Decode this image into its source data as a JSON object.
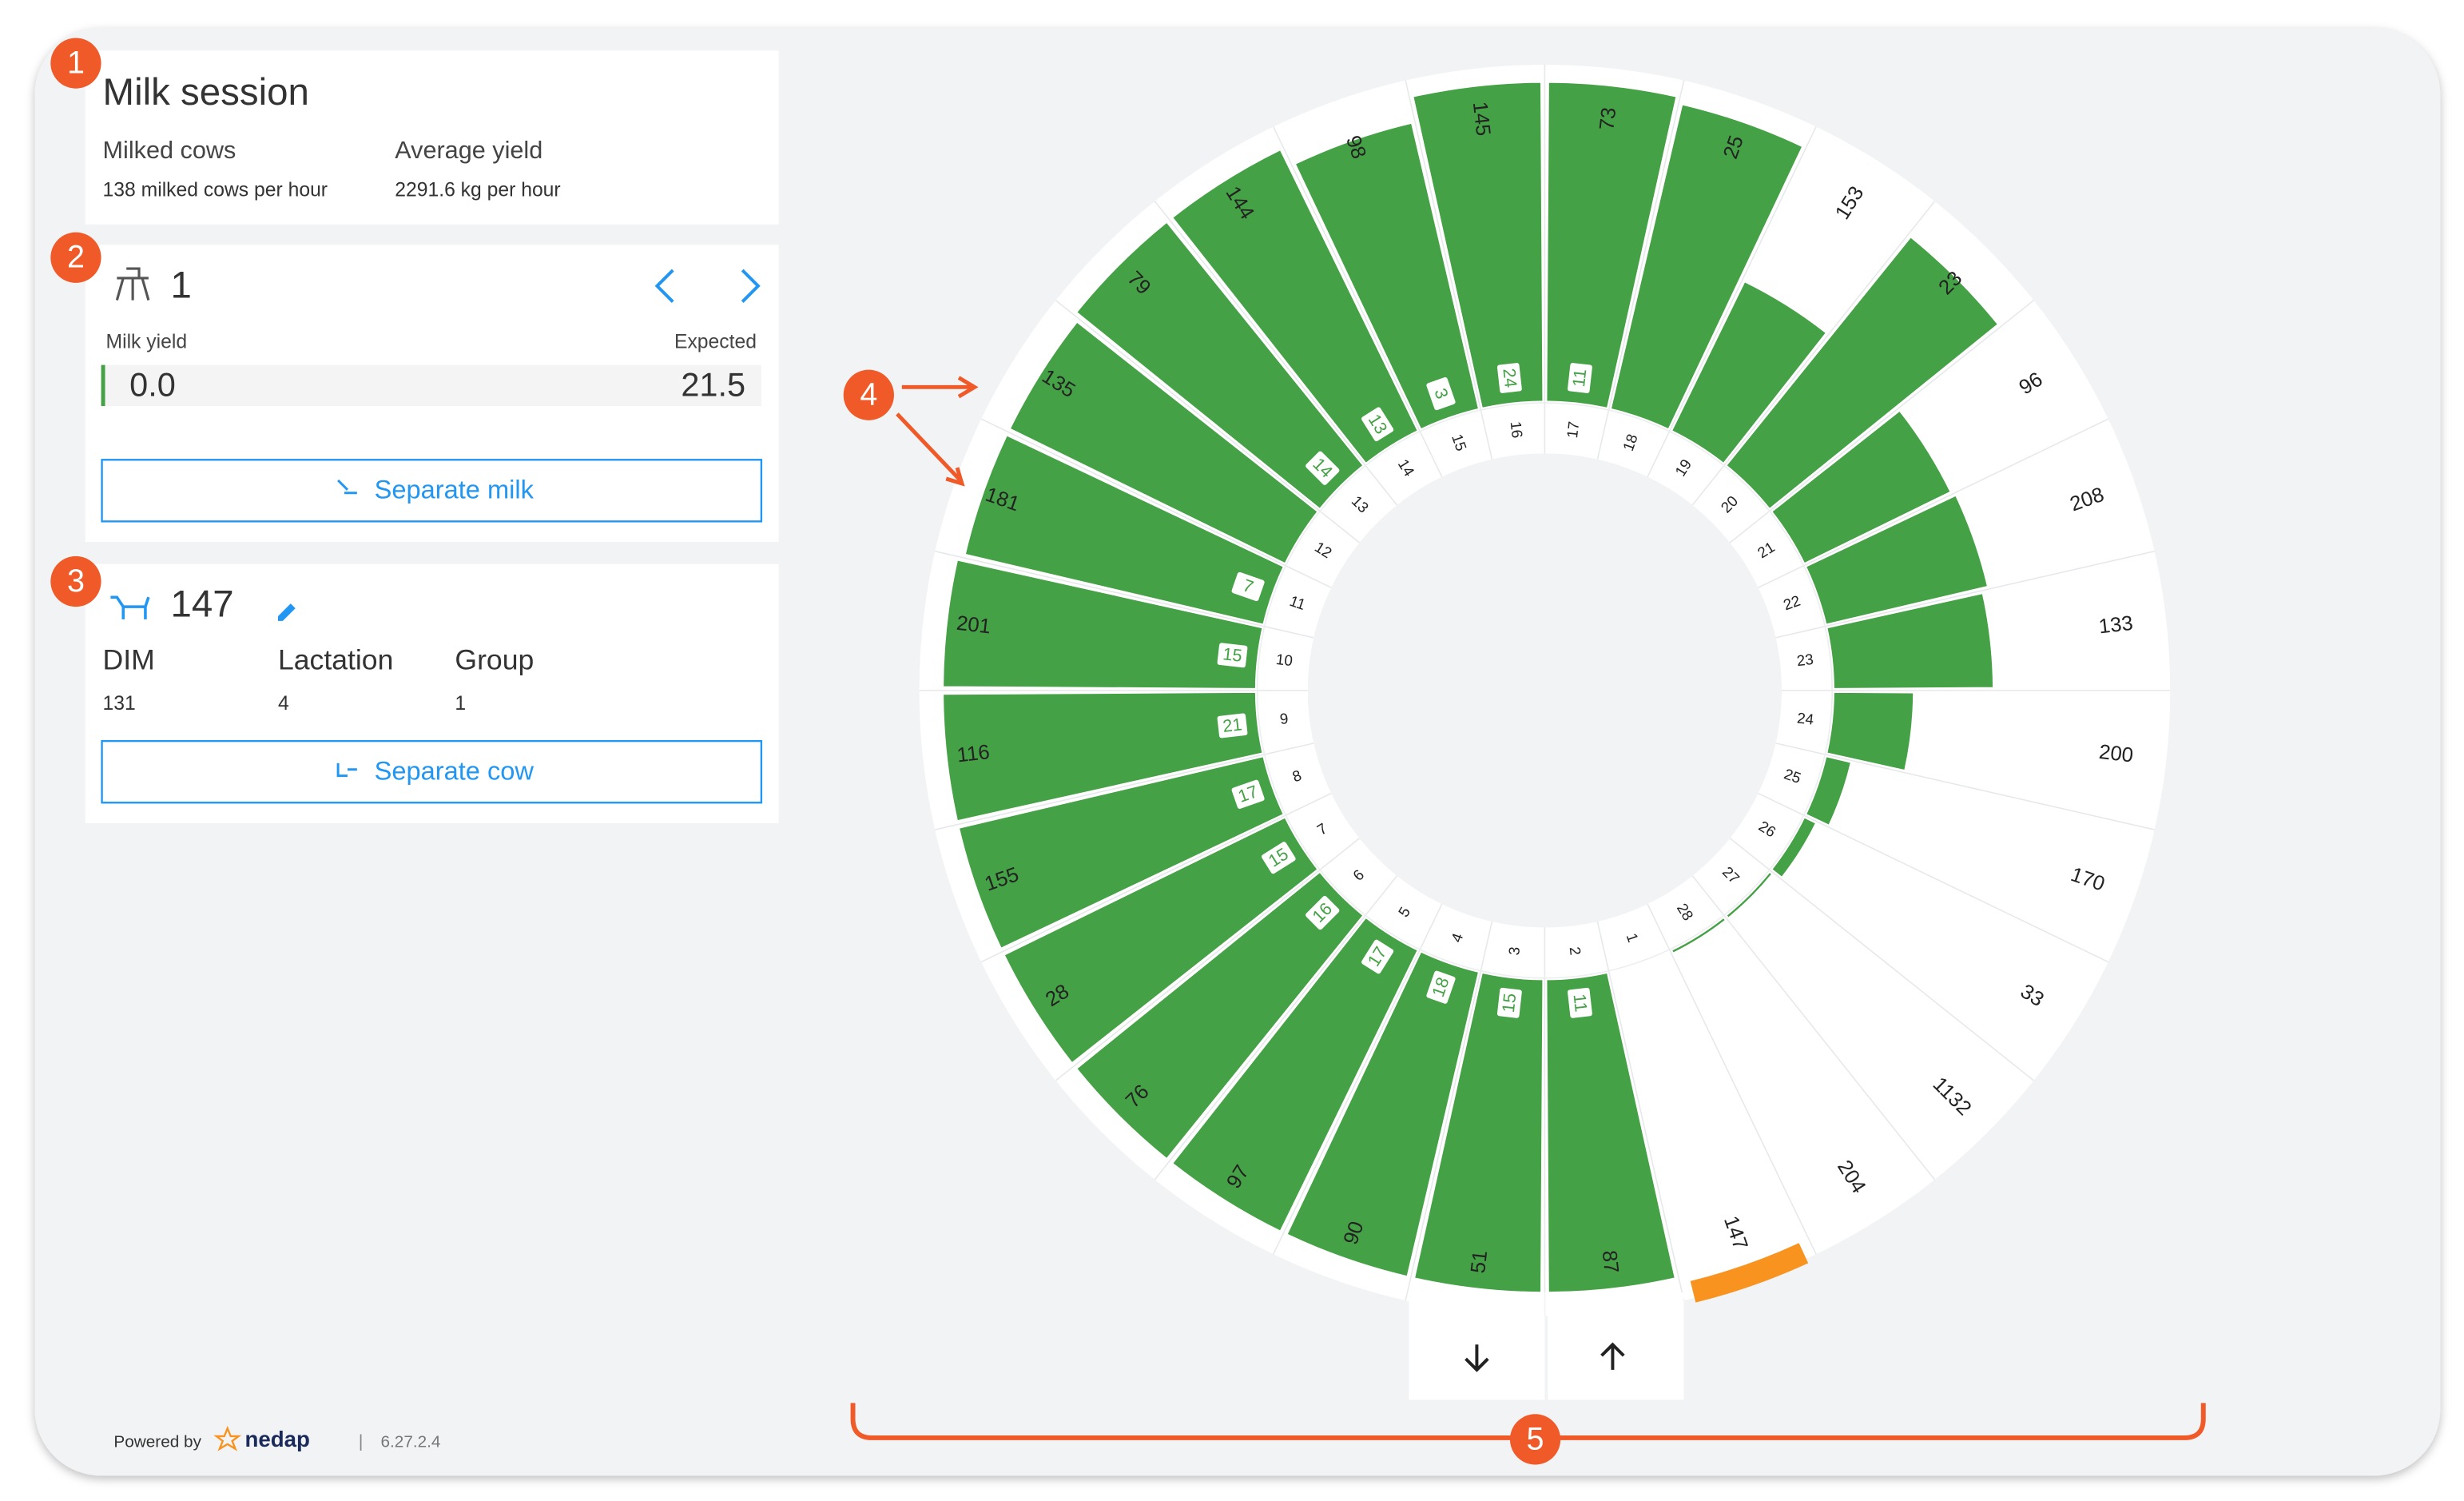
{
  "session": {
    "title": "Milk session",
    "milked_label": "Milked cows",
    "milked_value": "138 milked cows per hour",
    "yield_label": "Average yield",
    "yield_value": "2291.6 kg per hour"
  },
  "stall_panel": {
    "stall": "1",
    "milk_yield_label": "Milk yield",
    "expected_label": "Expected",
    "milk_yield": "0.0",
    "expected": "21.5",
    "button": "Separate milk"
  },
  "cow_panel": {
    "cow": "147",
    "fields": [
      {
        "label": "DIM",
        "value": "131"
      },
      {
        "label": "Lactation",
        "value": "4"
      },
      {
        "label": "Group",
        "value": "1"
      }
    ],
    "button": "Separate cow"
  },
  "footer": {
    "powered_by": "Powered by",
    "brand": "nedap",
    "separator": "|",
    "version": "6.27.2.4"
  },
  "callouts": [
    "1",
    "2",
    "3",
    "4",
    "5"
  ],
  "rotary": {
    "bar_color": "#45a145",
    "current_color": "#f7931e",
    "stalls": [
      {
        "number": 1,
        "cow": "147",
        "progress": 0,
        "current": true
      },
      {
        "number": 2,
        "cow": "87",
        "tag": "11",
        "progress": 98
      },
      {
        "number": 3,
        "cow": "51",
        "tag": "15",
        "progress": 98
      },
      {
        "number": 4,
        "cow": "90",
        "tag": "18",
        "progress": 98
      },
      {
        "number": 5,
        "cow": "97",
        "tag": "17",
        "progress": 98
      },
      {
        "number": 6,
        "cow": "76",
        "tag": "16",
        "progress": 98
      },
      {
        "number": 7,
        "cow": "28",
        "tag": "15",
        "progress": 98
      },
      {
        "number": 8,
        "cow": "155",
        "tag": "17",
        "progress": 98
      },
      {
        "number": 9,
        "cow": "116",
        "tag": "21",
        "progress": 98
      },
      {
        "number": 10,
        "cow": "201",
        "tag": "15",
        "progress": 98
      },
      {
        "number": 11,
        "cow": "181",
        "tag": "7",
        "progress": 96
      },
      {
        "number": 12,
        "cow": "135",
        "progress": 96
      },
      {
        "number": 13,
        "cow": "79",
        "tag": "14",
        "progress": 98
      },
      {
        "number": 14,
        "cow": "144",
        "tag": "13",
        "progress": 98
      },
      {
        "number": 15,
        "cow": "98",
        "tag": "3",
        "progress": 92
      },
      {
        "number": 16,
        "cow": "145",
        "tag": "24",
        "progress": 100
      },
      {
        "number": 17,
        "cow": "73",
        "tag": "11",
        "progress": 100
      },
      {
        "number": 18,
        "cow": "25",
        "progress": 98
      },
      {
        "number": 19,
        "cow": "153",
        "progress": 52
      },
      {
        "number": 20,
        "cow": "23",
        "progress": 92
      },
      {
        "number": 21,
        "cow": "96",
        "progress": 51
      },
      {
        "number": 22,
        "cow": "208",
        "progress": 52
      },
      {
        "number": 23,
        "cow": "133",
        "progress": 50
      },
      {
        "number": 24,
        "cow": "200",
        "progress": 25
      },
      {
        "number": 25,
        "cow": "170",
        "progress": 8
      },
      {
        "number": 26,
        "cow": "33",
        "progress": 4
      },
      {
        "number": 27,
        "cow": "1132",
        "progress": 1
      },
      {
        "number": 28,
        "cow": "204",
        "progress": 1
      }
    ]
  }
}
